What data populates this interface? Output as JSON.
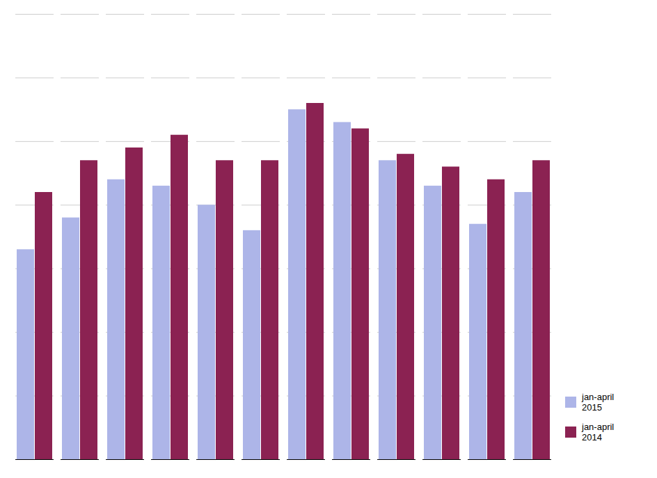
{
  "chart_data": {
    "type": "bar",
    "categories": [
      null,
      null,
      null,
      null,
      null,
      null,
      null,
      null,
      null,
      null,
      null,
      null
    ],
    "series": [
      {
        "name": "jan-april\n2015",
        "color": "#adb5e8",
        "values": [
          0.33,
          0.38,
          0.44,
          0.43,
          0.4,
          0.36,
          0.55,
          0.53,
          0.47,
          0.43,
          0.37,
          0.42
        ]
      },
      {
        "name": "jan-april\n2014",
        "color": "#8b2252",
        "values": [
          0.42,
          0.47,
          0.49,
          0.51,
          0.47,
          0.47,
          0.56,
          0.52,
          0.48,
          0.46,
          0.44,
          0.47
        ]
      }
    ],
    "ylim": [
      0.0,
      0.7
    ],
    "yticks": [
      0.0,
      0.1,
      0.2,
      0.3,
      0.4,
      0.5,
      0.6,
      0.7
    ],
    "grid": true,
    "legend": "lower right",
    "tick_labels": false
  }
}
